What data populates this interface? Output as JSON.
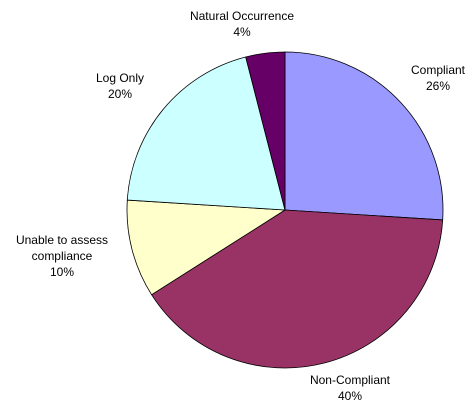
{
  "chart_data": {
    "type": "pie",
    "categories": [
      "Compliant",
      "Non-Compliant",
      "Unable to assess compliance",
      "Log Only",
      "Natural Occurrence"
    ],
    "values": [
      26,
      40,
      10,
      20,
      4
    ],
    "value_labels": [
      "26%",
      "40%",
      "10%",
      "20%",
      "4%"
    ],
    "colors": [
      "#9999ff",
      "#993366",
      "#ffffcc",
      "#ccffff",
      "#660066"
    ]
  }
}
